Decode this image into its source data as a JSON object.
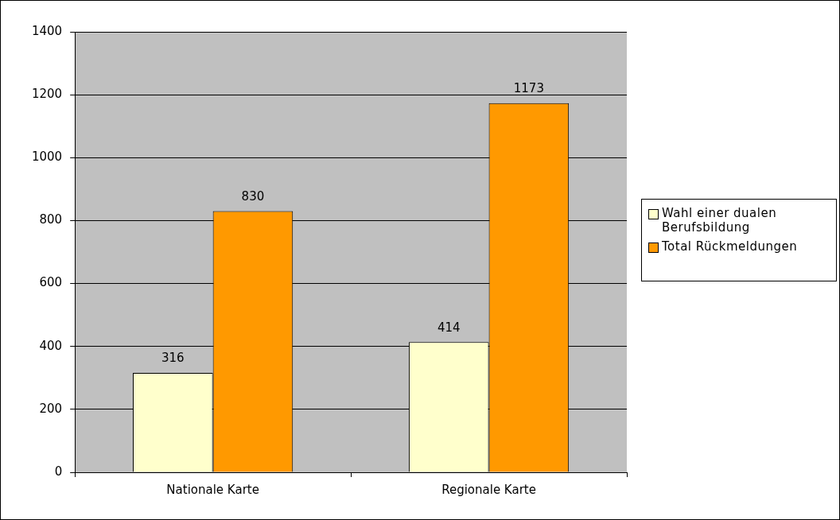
{
  "chart_data": {
    "type": "bar",
    "categories": [
      "Nationale Karte",
      "Regionale Karte"
    ],
    "series": [
      {
        "name": "Wahl einer dualen Berufsbildung",
        "color": "#ffffcc",
        "values": [
          316,
          414
        ]
      },
      {
        "name": "Total Rückmeldungen",
        "color": "#ff9900",
        "values": [
          830,
          1173
        ]
      }
    ],
    "ylim": [
      0,
      1400
    ],
    "yticks": [
      0,
      200,
      400,
      600,
      800,
      1000,
      1200,
      1400
    ],
    "grid": "y",
    "legend": "right",
    "data_labels": true
  }
}
